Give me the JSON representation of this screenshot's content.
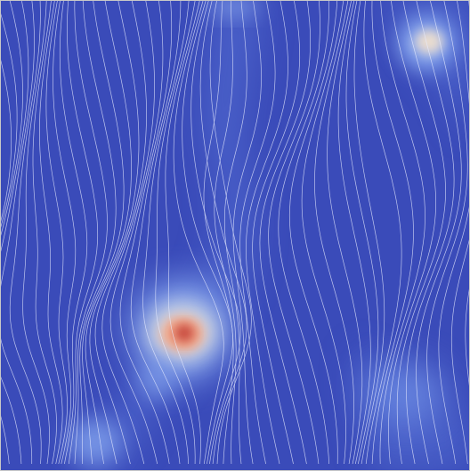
{
  "visualization": {
    "kind": "scalar-field-with-contour-lines",
    "colormap": [
      "#3b4cc0",
      "#6a8bef",
      "#aac7fd",
      "#dddddd",
      "#f6b89b",
      "#e7745b",
      "#b40426"
    ],
    "contour_color": "#e8ecff",
    "hotspots": [
      {
        "label": "primary-peak",
        "intensity": 1.0
      },
      {
        "label": "top-right-peak",
        "intensity": 0.45
      },
      {
        "label": "bottom-left-glow",
        "intensity": 0.3
      },
      {
        "label": "bottom-right-glow",
        "intensity": 0.25
      },
      {
        "label": "top-center-glow",
        "intensity": 0.2
      }
    ]
  }
}
